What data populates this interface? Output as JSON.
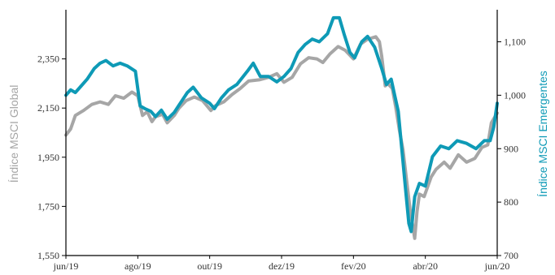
{
  "chart_data": {
    "type": "line",
    "title": "",
    "grid": false,
    "legend": "none",
    "x": {
      "start": "2019-06-01",
      "end": "2020-06-01",
      "tick_labels": [
        "jun/19",
        "ago/19",
        "out/19",
        "dez/19",
        "fev/20",
        "abr/20",
        "jun/20"
      ]
    },
    "y_left": {
      "label": "Índice MSCI Global",
      "range": [
        1550,
        2550
      ],
      "ticks": [
        "1,550",
        "1,750",
        "1,950",
        "2,150",
        "2,350"
      ],
      "color": "#a6a6a6"
    },
    "y_right": {
      "label": "Índice MSCI Emergentes",
      "range": [
        700,
        1160
      ],
      "ticks": [
        "700",
        "800",
        "900",
        "1,000",
        "1,100"
      ],
      "color": "#0e9ab6"
    },
    "series": [
      {
        "name": "Índice MSCI Global",
        "axis": "left",
        "color": "#a6a6a6",
        "points": [
          [
            "2019-06-01",
            2040
          ],
          [
            "2019-06-05",
            2065
          ],
          [
            "2019-06-09",
            2120
          ],
          [
            "2019-06-16",
            2140
          ],
          [
            "2019-06-23",
            2165
          ],
          [
            "2019-06-30",
            2175
          ],
          [
            "2019-07-07",
            2165
          ],
          [
            "2019-07-13",
            2200
          ],
          [
            "2019-07-20",
            2190
          ],
          [
            "2019-07-27",
            2215
          ],
          [
            "2019-08-01",
            2200
          ],
          [
            "2019-08-05",
            2120
          ],
          [
            "2019-08-09",
            2135
          ],
          [
            "2019-08-13",
            2095
          ],
          [
            "2019-08-16",
            2115
          ],
          [
            "2019-08-22",
            2125
          ],
          [
            "2019-08-26",
            2090
          ],
          [
            "2019-09-01",
            2120
          ],
          [
            "2019-09-05",
            2150
          ],
          [
            "2019-09-11",
            2180
          ],
          [
            "2019-09-18",
            2195
          ],
          [
            "2019-09-25",
            2180
          ],
          [
            "2019-10-02",
            2140
          ],
          [
            "2019-10-06",
            2160
          ],
          [
            "2019-10-13",
            2175
          ],
          [
            "2019-10-20",
            2205
          ],
          [
            "2019-10-27",
            2230
          ],
          [
            "2019-11-03",
            2260
          ],
          [
            "2019-11-12",
            2265
          ],
          [
            "2019-11-20",
            2275
          ],
          [
            "2019-11-27",
            2290
          ],
          [
            "2019-12-03",
            2255
          ],
          [
            "2019-12-10",
            2275
          ],
          [
            "2019-12-17",
            2330
          ],
          [
            "2019-12-24",
            2355
          ],
          [
            "2019-12-31",
            2350
          ],
          [
            "2020-01-05",
            2335
          ],
          [
            "2020-01-11",
            2370
          ],
          [
            "2020-01-18",
            2400
          ],
          [
            "2020-01-24",
            2385
          ],
          [
            "2020-01-31",
            2350
          ],
          [
            "2020-02-06",
            2410
          ],
          [
            "2020-02-12",
            2430
          ],
          [
            "2020-02-19",
            2440
          ],
          [
            "2020-02-22",
            2420
          ],
          [
            "2020-02-24",
            2360
          ],
          [
            "2020-02-27",
            2240
          ],
          [
            "2020-02-29",
            2250
          ],
          [
            "2020-03-04",
            2230
          ],
          [
            "2020-03-07",
            2150
          ],
          [
            "2020-03-10",
            2060
          ],
          [
            "2020-03-13",
            1980
          ],
          [
            "2020-03-16",
            1860
          ],
          [
            "2020-03-19",
            1740
          ],
          [
            "2020-03-23",
            1620
          ],
          [
            "2020-03-25",
            1730
          ],
          [
            "2020-03-27",
            1800
          ],
          [
            "2020-03-31",
            1790
          ],
          [
            "2020-04-06",
            1870
          ],
          [
            "2020-04-10",
            1900
          ],
          [
            "2020-04-17",
            1930
          ],
          [
            "2020-04-22",
            1905
          ],
          [
            "2020-04-29",
            1960
          ],
          [
            "2020-05-06",
            1930
          ],
          [
            "2020-05-13",
            1945
          ],
          [
            "2020-05-19",
            1990
          ],
          [
            "2020-05-24",
            2000
          ],
          [
            "2020-05-27",
            2090
          ],
          [
            "2020-06-01",
            2130
          ]
        ]
      },
      {
        "name": "Índice MSCI Emergentes",
        "axis": "right",
        "color": "#0e9ab6",
        "points": [
          [
            "2019-06-01",
            1000
          ],
          [
            "2019-06-05",
            1010
          ],
          [
            "2019-06-09",
            1005
          ],
          [
            "2019-06-13",
            1015
          ],
          [
            "2019-06-19",
            1030
          ],
          [
            "2019-06-25",
            1050
          ],
          [
            "2019-06-30",
            1060
          ],
          [
            "2019-07-05",
            1065
          ],
          [
            "2019-07-11",
            1055
          ],
          [
            "2019-07-17",
            1060
          ],
          [
            "2019-07-23",
            1055
          ],
          [
            "2019-07-30",
            1045
          ],
          [
            "2019-08-03",
            980
          ],
          [
            "2019-08-07",
            975
          ],
          [
            "2019-08-12",
            970
          ],
          [
            "2019-08-16",
            960
          ],
          [
            "2019-08-21",
            972
          ],
          [
            "2019-08-26",
            955
          ],
          [
            "2019-09-01",
            968
          ],
          [
            "2019-09-06",
            985
          ],
          [
            "2019-09-12",
            1005
          ],
          [
            "2019-09-17",
            1015
          ],
          [
            "2019-09-24",
            995
          ],
          [
            "2019-10-01",
            985
          ],
          [
            "2019-10-05",
            975
          ],
          [
            "2019-10-11",
            995
          ],
          [
            "2019-10-17",
            1010
          ],
          [
            "2019-10-24",
            1020
          ],
          [
            "2019-11-02",
            1045
          ],
          [
            "2019-11-07",
            1060
          ],
          [
            "2019-11-13",
            1035
          ],
          [
            "2019-11-20",
            1035
          ],
          [
            "2019-11-27",
            1025
          ],
          [
            "2019-12-03",
            1035
          ],
          [
            "2019-12-09",
            1050
          ],
          [
            "2019-12-15",
            1080
          ],
          [
            "2019-12-21",
            1095
          ],
          [
            "2019-12-27",
            1105
          ],
          [
            "2020-01-02",
            1100
          ],
          [
            "2020-01-09",
            1115
          ],
          [
            "2020-01-14",
            1145
          ],
          [
            "2020-01-19",
            1145
          ],
          [
            "2020-01-23",
            1115
          ],
          [
            "2020-01-28",
            1080
          ],
          [
            "2020-02-01",
            1070
          ],
          [
            "2020-02-07",
            1100
          ],
          [
            "2020-02-12",
            1110
          ],
          [
            "2020-02-18",
            1090
          ],
          [
            "2020-02-24",
            1050
          ],
          [
            "2020-02-28",
            1020
          ],
          [
            "2020-03-03",
            1030
          ],
          [
            "2020-03-06",
            1000
          ],
          [
            "2020-03-09",
            970
          ],
          [
            "2020-03-12",
            900
          ],
          [
            "2020-03-15",
            830
          ],
          [
            "2020-03-18",
            760
          ],
          [
            "2020-03-20",
            745
          ],
          [
            "2020-03-23",
            810
          ],
          [
            "2020-03-27",
            835
          ],
          [
            "2020-04-01",
            830
          ],
          [
            "2020-04-07",
            885
          ],
          [
            "2020-04-14",
            905
          ],
          [
            "2020-04-21",
            900
          ],
          [
            "2020-04-28",
            915
          ],
          [
            "2020-05-06",
            910
          ],
          [
            "2020-05-14",
            900
          ],
          [
            "2020-05-21",
            915
          ],
          [
            "2020-05-26",
            915
          ],
          [
            "2020-05-29",
            940
          ],
          [
            "2020-06-01",
            985
          ]
        ]
      }
    ]
  }
}
